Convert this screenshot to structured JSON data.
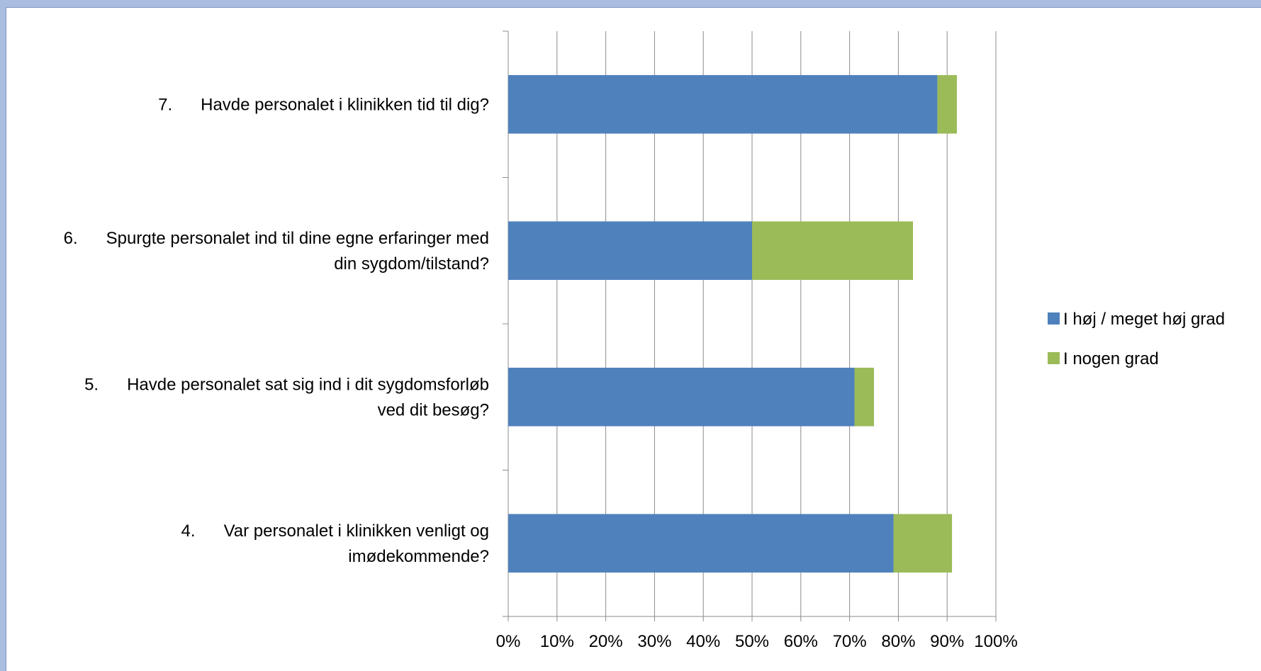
{
  "chart_data": {
    "type": "bar",
    "orientation": "horizontal",
    "stacked": true,
    "categories": [
      {
        "number": "7.",
        "lines": [
          "Havde personalet i klinikken tid til dig?"
        ]
      },
      {
        "number": "6.",
        "lines": [
          "Spurgte personalet ind til dine egne erfaringer med",
          "din sygdom/tilstand?"
        ]
      },
      {
        "number": "5.",
        "lines": [
          "Havde personalet sat sig ind i dit sygdomsforløb",
          "ved dit besøg?"
        ]
      },
      {
        "number": "4.",
        "lines": [
          "Var personalet i klinikken venligt og",
          "imødekommende?"
        ]
      }
    ],
    "series": [
      {
        "name": "I høj / meget høj grad",
        "color": "#4f81bd",
        "values": [
          88,
          50,
          71,
          79
        ]
      },
      {
        "name": "I nogen grad",
        "color": "#9bbb59",
        "values": [
          4,
          33,
          4,
          12
        ]
      }
    ],
    "xlim": [
      0,
      100
    ],
    "xticks": [
      "0%",
      "10%",
      "20%",
      "30%",
      "40%",
      "50%",
      "60%",
      "70%",
      "80%",
      "90%",
      "100%"
    ],
    "grid": true,
    "legend_position": "right"
  }
}
